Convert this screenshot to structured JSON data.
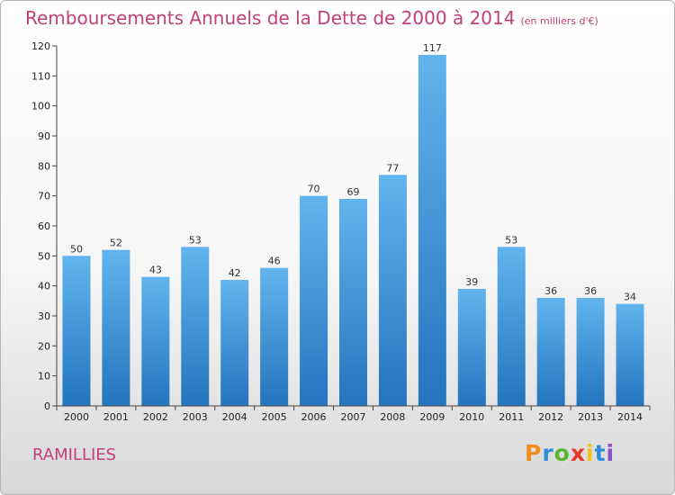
{
  "title": "Remboursements Annuels de la Dette de 2000 à 2014",
  "unit": "(en milliers d'€)",
  "commune": "RAMILLIES",
  "logo": {
    "letters": [
      "P",
      "r",
      "o",
      "x",
      "i",
      "t",
      "i"
    ],
    "colors": [
      "#f28c1e",
      "#2e8fd8",
      "#5cb531",
      "#e8392a",
      "#f2c21a",
      "#2e8fd8",
      "#8a4fc4"
    ]
  },
  "colors": {
    "bar_top": "#62b4ee",
    "bar_bottom": "#2474be",
    "title": "#c0407a"
  },
  "chart_data": {
    "type": "bar",
    "title": "Remboursements Annuels de la Dette de 2000 à 2014",
    "xlabel": "",
    "ylabel": "",
    "categories": [
      "2000",
      "2001",
      "2002",
      "2003",
      "2004",
      "2005",
      "2006",
      "2007",
      "2008",
      "2009",
      "2010",
      "2011",
      "2012",
      "2013",
      "2014"
    ],
    "values": [
      50,
      52,
      43,
      53,
      42,
      46,
      70,
      69,
      77,
      117,
      39,
      53,
      36,
      36,
      34
    ],
    "ylim": [
      0,
      120
    ],
    "yticks": [
      0,
      10,
      20,
      30,
      40,
      50,
      60,
      70,
      80,
      90,
      100,
      110,
      120
    ],
    "grid": false,
    "legend": "none"
  }
}
